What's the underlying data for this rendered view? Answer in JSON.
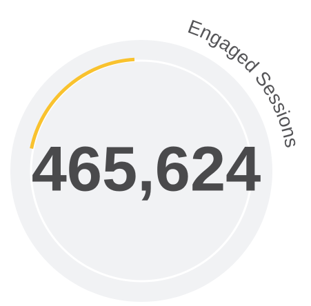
{
  "widget": {
    "value": "465,624",
    "label": "Engaged Sessions"
  }
}
